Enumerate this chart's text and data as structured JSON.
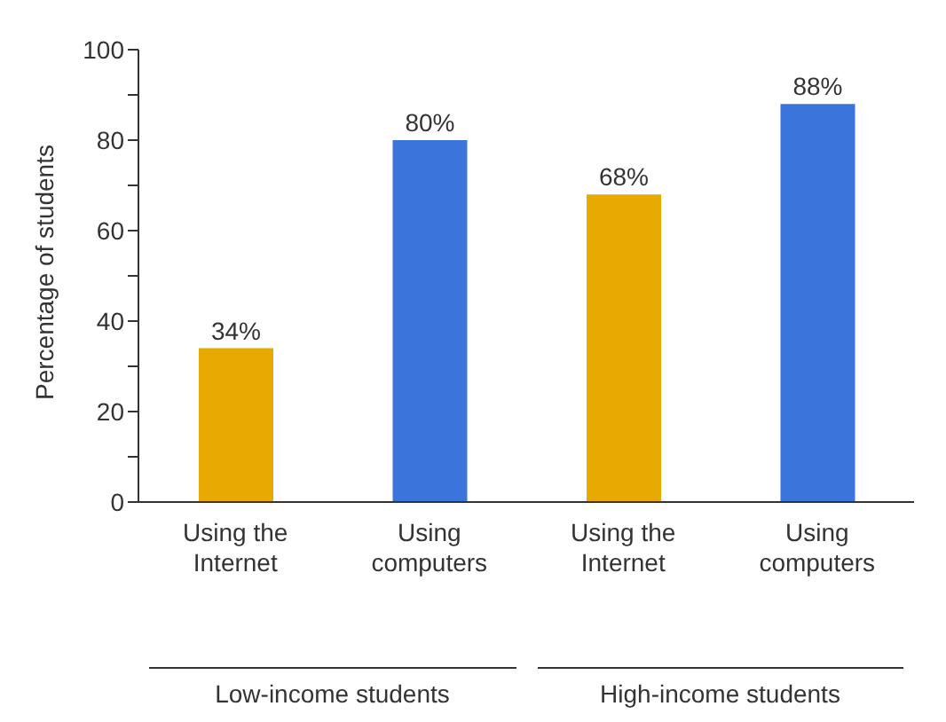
{
  "chart_data": {
    "type": "bar",
    "ylabel": "Percentage of students",
    "categories": [
      "Using the Internet",
      "Using computers",
      "Using the Internet",
      "Using computers"
    ],
    "values": [
      34,
      80,
      68,
      88
    ],
    "colors": [
      "#e8aa00",
      "#3b74db",
      "#e8aa00",
      "#3b74db"
    ],
    "value_labels": [
      "34%",
      "80%",
      "68%",
      "88%"
    ],
    "ylim": [
      0,
      100
    ],
    "yticks": [
      0,
      {
        "value": 10,
        "label": null
      },
      20,
      {
        "value": 30,
        "label": null
      },
      40,
      {
        "value": 50,
        "label": null
      },
      60,
      {
        "value": 70,
        "label": null
      },
      80,
      {
        "value": 90,
        "label": null
      },
      100
    ],
    "grid": false,
    "annotations": [
      "Low-income students",
      "High-income students"
    ]
  }
}
